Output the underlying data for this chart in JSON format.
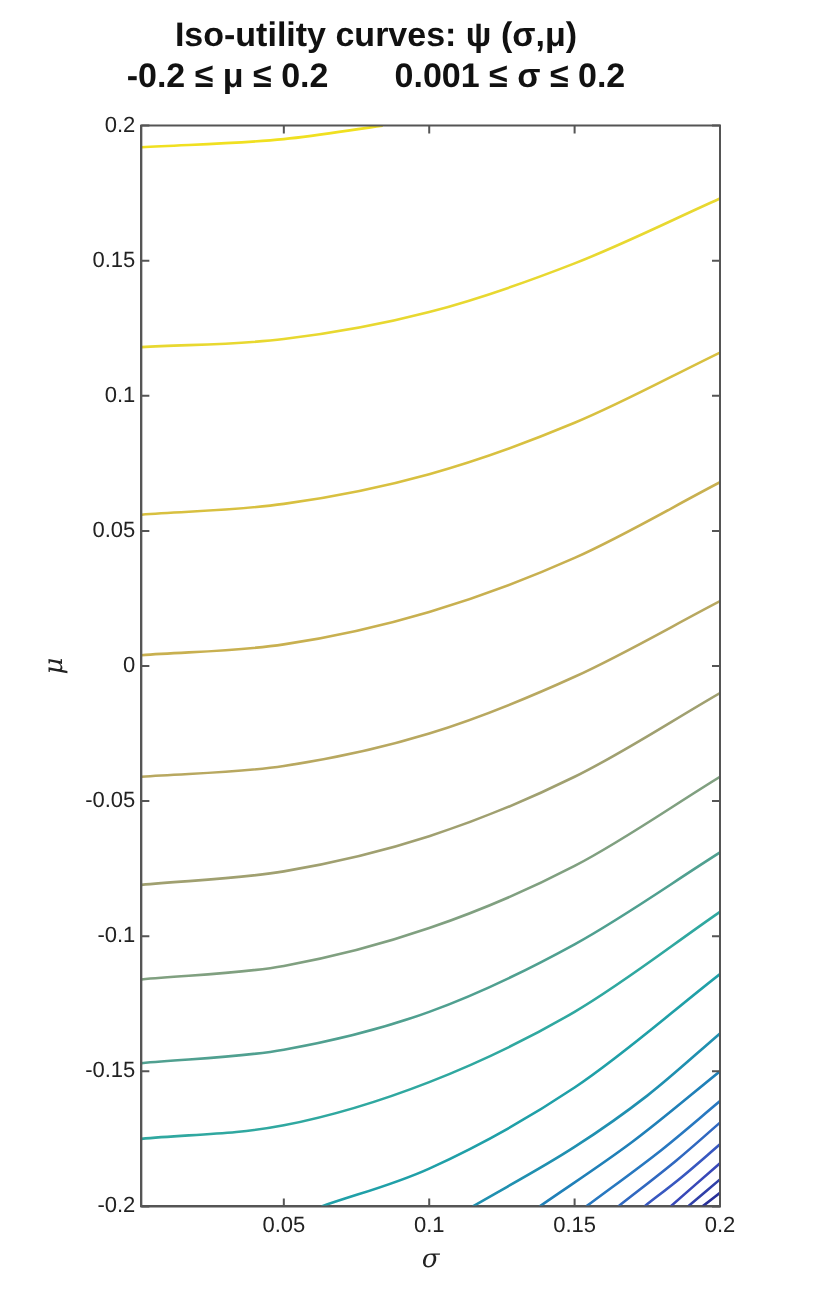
{
  "chart_data": {
    "type": "line",
    "title": "Iso-utility curves: ψ (σ,μ)",
    "subtitle": "-0.2 ≤ μ ≤ 0.2       0.001 ≤ σ ≤ 0.2",
    "xlabel": "σ",
    "ylabel": "μ",
    "xlim": [
      0.001,
      0.2
    ],
    "xticks": [
      0.05,
      0.1,
      0.15,
      0.2
    ],
    "ylim": [
      -0.2,
      0.2
    ],
    "yticks": [
      -0.2,
      -0.15,
      -0.1,
      -0.05,
      0,
      0.05,
      0.1,
      0.15,
      0.2
    ],
    "grid": false,
    "legend": false,
    "marker": "none",
    "series": [
      {
        "color": "#f0e020",
        "x": [
          0.001,
          0.05,
          0.084
        ],
        "values": [
          0.192,
          0.195,
          0.2
        ]
      },
      {
        "color": "#e8d830",
        "x": [
          0.001,
          0.05,
          0.1,
          0.15,
          0.2
        ],
        "values": [
          0.118,
          0.121,
          0.131,
          0.149,
          0.173
        ]
      },
      {
        "color": "#d8c040",
        "x": [
          0.001,
          0.05,
          0.1,
          0.15,
          0.2
        ],
        "values": [
          0.056,
          0.06,
          0.071,
          0.09,
          0.116
        ]
      },
      {
        "color": "#c8b050",
        "x": [
          0.001,
          0.05,
          0.1,
          0.15,
          0.2
        ],
        "values": [
          0.004,
          0.008,
          0.02,
          0.04,
          0.068
        ]
      },
      {
        "color": "#b8a860",
        "x": [
          0.001,
          0.05,
          0.1,
          0.15,
          0.2
        ],
        "values": [
          -0.041,
          -0.037,
          -0.025,
          -0.004,
          0.024
        ]
      },
      {
        "color": "#a0a070",
        "x": [
          0.001,
          0.05,
          0.1,
          0.15,
          0.2
        ],
        "values": [
          -0.081,
          -0.076,
          -0.063,
          -0.041,
          -0.01
        ]
      },
      {
        "color": "#80a080",
        "x": [
          0.001,
          0.05,
          0.1,
          0.15,
          0.2
        ],
        "values": [
          -0.116,
          -0.111,
          -0.097,
          -0.074,
          -0.041
        ]
      },
      {
        "color": "#50a090",
        "x": [
          0.001,
          0.05,
          0.1,
          0.15,
          0.2
        ],
        "values": [
          -0.147,
          -0.142,
          -0.128,
          -0.103,
          -0.069
        ]
      },
      {
        "color": "#30a8a0",
        "x": [
          0.001,
          0.05,
          0.1,
          0.15,
          0.2
        ],
        "values": [
          -0.175,
          -0.17,
          -0.154,
          -0.128,
          -0.091
        ]
      },
      {
        "color": "#20a0a8",
        "x": [
          0.063,
          0.1,
          0.15,
          0.2
        ],
        "values": [
          -0.2,
          -0.186,
          -0.156,
          -0.114
        ]
      },
      {
        "color": "#2090b0",
        "x": [
          0.115,
          0.15,
          0.175,
          0.2
        ],
        "values": [
          -0.2,
          -0.178,
          -0.159,
          -0.136
        ]
      },
      {
        "color": "#2080b8",
        "x": [
          0.138,
          0.17,
          0.2
        ],
        "values": [
          -0.2,
          -0.176,
          -0.15
        ]
      },
      {
        "color": "#2878c0",
        "x": [
          0.154,
          0.18,
          0.2
        ],
        "values": [
          -0.2,
          -0.179,
          -0.161
        ]
      },
      {
        "color": "#3068c0",
        "x": [
          0.165,
          0.185,
          0.2
        ],
        "values": [
          -0.2,
          -0.183,
          -0.169
        ]
      },
      {
        "color": "#3858c0",
        "x": [
          0.174,
          0.187,
          0.2
        ],
        "values": [
          -0.2,
          -0.189,
          -0.177
        ]
      },
      {
        "color": "#3848b8",
        "x": [
          0.183,
          0.2
        ],
        "values": [
          -0.2,
          -0.184
        ]
      },
      {
        "color": "#3040a8",
        "x": [
          0.189,
          0.2
        ],
        "values": [
          -0.2,
          -0.19
        ]
      },
      {
        "color": "#283098",
        "x": [
          0.194,
          0.2
        ],
        "values": [
          -0.2,
          -0.195
        ]
      }
    ]
  }
}
